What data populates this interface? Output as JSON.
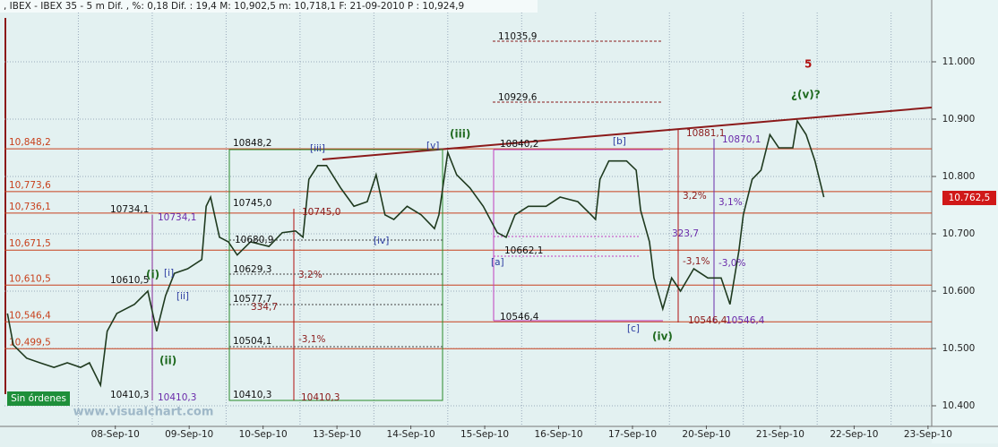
{
  "chart_data": {
    "type": "line",
    "title": ", IBEX - IBEX 35 - 5 m Dif. , %: 0,18 Dif. : 19,4 M: 10,902,5 m: 10,718,1 F: 21-09-2010 P : 10,924,9",
    "x": [
      0.04,
      0.12,
      0.3,
      0.48,
      0.67,
      0.85,
      1.03,
      1.15,
      1.3,
      1.39,
      1.52,
      1.76,
      1.94,
      2.06,
      2.18,
      2.3,
      2.48,
      2.67,
      2.73,
      2.79,
      2.91,
      3.03,
      3.15,
      3.33,
      3.58,
      3.76,
      3.94,
      4.04,
      4.12,
      4.24,
      4.36,
      4.55,
      4.73,
      4.91,
      5.03,
      5.15,
      5.27,
      5.45,
      5.64,
      5.82,
      5.88,
      6.0,
      6.12,
      6.3,
      6.48,
      6.67,
      6.79,
      6.91,
      7.09,
      7.33,
      7.52,
      7.76,
      7.94,
      8.0,
      8.06,
      8.18,
      8.42,
      8.55,
      8.61,
      8.73,
      8.79,
      8.91,
      9.03,
      9.15,
      9.33,
      9.52,
      9.7,
      9.82,
      9.94,
      10.0,
      10.12,
      10.24,
      10.36,
      10.48,
      10.67,
      10.73,
      10.85,
      10.97,
      11.09
    ],
    "series": [
      {
        "color": "#1f3a1f",
        "values": [
          10561,
          10506,
          10483,
          10475,
          10467,
          10475,
          10467,
          10475,
          10436,
          10530,
          10561,
          10577,
          10600,
          10530,
          10592,
          10631,
          10639,
          10655,
          10748,
          10764,
          10694,
          10686,
          10663,
          10686,
          10678,
          10702,
          10705,
          10694,
          10795,
          10819,
          10819,
          10780,
          10748,
          10756,
          10803,
          10733,
          10725,
          10748,
          10733,
          10709,
          10733,
          10842,
          10803,
          10780,
          10748,
          10702,
          10694,
          10733,
          10748,
          10748,
          10764,
          10756,
          10733,
          10725,
          10795,
          10827,
          10827,
          10811,
          10741,
          10686,
          10623,
          10569,
          10623,
          10600,
          10639,
          10623,
          10623,
          10577,
          10670,
          10733,
          10795,
          10811,
          10873,
          10850,
          10850,
          10897,
          10873,
          10827,
          10764
        ]
      }
    ],
    "xlim": [
      0,
      12.55
    ],
    "xticks": [
      {
        "value": 1.5,
        "label": "08-Sep-10"
      },
      {
        "value": 2.5,
        "label": "09-Sep-10"
      },
      {
        "value": 3.5,
        "label": "10-Sep-10"
      },
      {
        "value": 4.5,
        "label": "13-Sep-10"
      },
      {
        "value": 5.5,
        "label": "14-Sep-10"
      },
      {
        "value": 6.5,
        "label": "15-Sep-10"
      },
      {
        "value": 7.5,
        "label": "16-Sep-10"
      },
      {
        "value": 8.5,
        "label": "17-Sep-10"
      },
      {
        "value": 9.5,
        "label": "20-Sep-10"
      },
      {
        "value": 10.5,
        "label": "21-Sep-10"
      },
      {
        "value": 11.5,
        "label": "22-Sep-10"
      },
      {
        "value": 12.5,
        "label": "23-Sep-10"
      }
    ],
    "ylim": [
      10365.6,
      11107.8
    ],
    "yticks": [
      {
        "value": 10400,
        "label": "10.400"
      },
      {
        "value": 10500,
        "label": "10.500"
      },
      {
        "value": 10600,
        "label": "10.600"
      },
      {
        "value": 10700,
        "label": "10.700"
      },
      {
        "value": 10800,
        "label": "10.800"
      },
      {
        "value": 10900,
        "label": "10.900"
      },
      {
        "value": 11000,
        "label": "11.000"
      }
    ],
    "grid": true,
    "levels": [
      {
        "value": 10848.2,
        "label": "10,848,2"
      },
      {
        "value": 10773.6,
        "label": "10,773,6"
      },
      {
        "value": 10736.1,
        "label": "10,736,1"
      },
      {
        "value": 10671.5,
        "label": "10,671,5"
      },
      {
        "value": 10610.5,
        "label": "10,610,5"
      },
      {
        "value": 10546.4,
        "label": "10,546,4"
      },
      {
        "value": 10499.5,
        "label": "10,499,5"
      }
    ],
    "level_color": "#c8401c",
    "last_value": 10762.5,
    "last_label": "10.762,5",
    "annotations": [
      "5",
      "¿(v)?",
      "(iii)",
      "(iv)",
      "(i)",
      "(ii)",
      "[iii]",
      "[v]",
      "[b]",
      "[a]",
      "[c]",
      "[iv]",
      "[i]",
      "[ii]",
      "11035,9",
      "10929,6",
      "10848,2",
      "10745,0",
      "10680,9",
      "10629,3",
      "10577,7",
      "10504,1",
      "10410,3",
      "10734,1",
      "10610,5",
      "10410,3",
      "10840,2",
      "10546,4",
      "10662,1",
      "10881,1",
      "10870,1",
      "10546,4",
      "10546,4",
      "3,2%",
      "3,1%",
      "-3,1%",
      "-3,0%",
      "323,7",
      "-3,1%",
      "3,2%",
      "334,7",
      "10745,0",
      "10734,1",
      "10410,3",
      "10410,3"
    ],
    "status": "Sin órdenes",
    "watermark": "www.visualchart.com"
  }
}
